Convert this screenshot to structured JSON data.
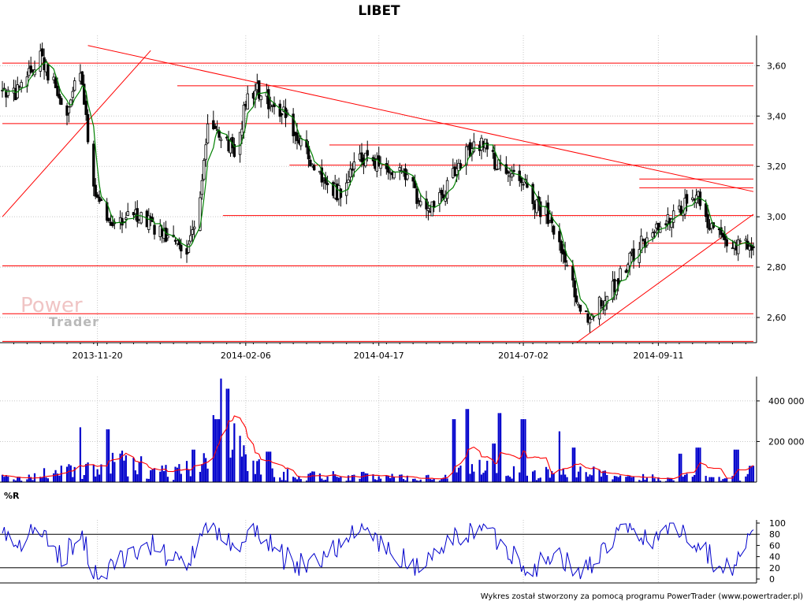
{
  "title": "LIBET",
  "watermark": {
    "line1": "Power",
    "line2": "Trader"
  },
  "footer": "Wykres został stworzony za pomocą programu PowerTrader (www.powertrader.pl)",
  "colors": {
    "candle": "#000000",
    "moving_average": "#008000",
    "support_resistance": "#ff0000",
    "volume_bars": "#0000cc",
    "volume_average": "#ff0000",
    "williams_r": "#0000cc"
  },
  "chart_data": [
    {
      "name": "price",
      "type": "candlestick",
      "title": "LIBET",
      "x_dates": {
        "start": "2013-10-01",
        "end": "2014-10-31"
      },
      "x_ticks": [
        "2013-11-20",
        "2014-02-06",
        "2014-04-17",
        "2014-07-02",
        "2014-09-11"
      ],
      "y_ticks": [
        "3,60",
        "3,40",
        "3,20",
        "3,00",
        "2,80",
        "2,60"
      ],
      "ylim": [
        2.5,
        3.72
      ],
      "grid": true,
      "keypoints": [
        [
          "2013-10-01",
          3.5
        ],
        [
          "2013-10-08",
          3.48
        ],
        [
          "2013-10-14",
          3.55
        ],
        [
          "2013-10-21",
          3.65
        ],
        [
          "2013-10-28",
          3.52
        ],
        [
          "2013-11-04",
          3.4
        ],
        [
          "2013-11-11",
          3.6
        ],
        [
          "2013-11-15",
          3.3
        ],
        [
          "2013-11-20",
          3.05
        ],
        [
          "2013-11-26",
          3.0
        ],
        [
          "2013-12-03",
          2.98
        ],
        [
          "2013-12-10",
          3.02
        ],
        [
          "2013-12-17",
          2.98
        ],
        [
          "2013-12-24",
          2.94
        ],
        [
          "2013-12-31",
          2.9
        ],
        [
          "2014-01-07",
          2.88
        ],
        [
          "2014-01-13",
          3.1
        ],
        [
          "2014-01-18",
          3.4
        ],
        [
          "2014-01-25",
          3.3
        ],
        [
          "2014-02-01",
          3.25
        ],
        [
          "2014-02-06",
          3.45
        ],
        [
          "2014-02-12",
          3.5
        ],
        [
          "2014-02-20",
          3.45
        ],
        [
          "2014-02-28",
          3.4
        ],
        [
          "2014-03-07",
          3.28
        ],
        [
          "2014-03-14",
          3.2
        ],
        [
          "2014-03-21",
          3.1
        ],
        [
          "2014-03-28",
          3.1
        ],
        [
          "2014-04-04",
          3.2
        ],
        [
          "2014-04-11",
          3.25
        ],
        [
          "2014-04-17",
          3.2
        ],
        [
          "2014-04-25",
          3.18
        ],
        [
          "2014-05-02",
          3.15
        ],
        [
          "2014-05-09",
          3.05
        ],
        [
          "2014-05-16",
          3.05
        ],
        [
          "2014-05-23",
          3.12
        ],
        [
          "2014-05-30",
          3.22
        ],
        [
          "2014-06-06",
          3.28
        ],
        [
          "2014-06-12",
          3.3
        ],
        [
          "2014-06-18",
          3.2
        ],
        [
          "2014-06-24",
          3.15
        ],
        [
          "2014-07-02",
          3.15
        ],
        [
          "2014-07-09",
          3.05
        ],
        [
          "2014-07-15",
          3.0
        ],
        [
          "2014-07-22",
          2.85
        ],
        [
          "2014-07-29",
          2.7
        ],
        [
          "2014-08-04",
          2.6
        ],
        [
          "2014-08-11",
          2.65
        ],
        [
          "2014-08-18",
          2.72
        ],
        [
          "2014-08-25",
          2.8
        ],
        [
          "2014-09-01",
          2.88
        ],
        [
          "2014-09-08",
          2.95
        ],
        [
          "2014-09-11",
          2.97
        ],
        [
          "2014-09-18",
          3.0
        ],
        [
          "2014-09-25",
          3.05
        ],
        [
          "2014-10-02",
          3.08
        ],
        [
          "2014-10-09",
          2.95
        ],
        [
          "2014-10-16",
          2.92
        ],
        [
          "2014-10-23",
          2.88
        ],
        [
          "2014-10-31",
          2.9
        ]
      ],
      "horizontal_levels": [
        {
          "y": 3.61,
          "from": "2013-10-01",
          "to": "2014-10-31"
        },
        {
          "y": 3.52,
          "from": "2014-01-01",
          "to": "2014-10-31"
        },
        {
          "y": 3.37,
          "from": "2013-10-01",
          "to": "2014-10-31"
        },
        {
          "y": 3.285,
          "from": "2014-03-22",
          "to": "2014-10-31"
        },
        {
          "y": 3.205,
          "from": "2014-03-01",
          "to": "2014-10-31"
        },
        {
          "y": 3.15,
          "from": "2014-09-01",
          "to": "2014-10-31"
        },
        {
          "y": 3.115,
          "from": "2014-09-01",
          "to": "2014-10-31"
        },
        {
          "y": 3.005,
          "from": "2014-01-25",
          "to": "2014-10-31"
        },
        {
          "y": 2.895,
          "from": "2014-09-01",
          "to": "2014-10-31"
        },
        {
          "y": 2.805,
          "from": "2013-10-01",
          "to": "2014-10-31"
        },
        {
          "y": 2.615,
          "from": "2013-10-01",
          "to": "2014-10-31"
        },
        {
          "y": 2.505,
          "from": "2013-10-01",
          "to": "2014-10-31"
        }
      ],
      "trendlines": [
        {
          "from": [
            "2013-10-01",
            3.0
          ],
          "to": [
            "2013-12-18",
            3.66
          ]
        },
        {
          "from": [
            "2013-11-15",
            3.68
          ],
          "to": [
            "2014-10-31",
            3.1
          ]
        },
        {
          "from": [
            "2014-07-30",
            2.5
          ],
          "to": [
            "2014-10-31",
            3.01
          ]
        }
      ]
    },
    {
      "name": "volume",
      "type": "bar",
      "y_ticks": [
        "400 000",
        "200 000"
      ],
      "ylim": [
        0,
        520000
      ],
      "keypoints": [
        [
          "2013-10-01",
          20000
        ],
        [
          "2013-11-15",
          60000
        ],
        [
          "2013-12-01",
          90000
        ],
        [
          "2014-01-01",
          50000
        ],
        [
          "2014-01-25",
          210000
        ],
        [
          "2014-02-06",
          120000
        ],
        [
          "2014-02-20",
          40000
        ],
        [
          "2014-04-01",
          30000
        ],
        [
          "2014-05-20",
          20000
        ],
        [
          "2014-06-01",
          70000
        ],
        [
          "2014-06-20",
          90000
        ],
        [
          "2014-07-01",
          30000
        ],
        [
          "2014-08-01",
          60000
        ],
        [
          "2014-08-20",
          20000
        ],
        [
          "2014-09-20",
          25000
        ],
        [
          "2014-10-31",
          25000
        ]
      ],
      "spikes": [
        [
          "2013-11-10",
          270000
        ],
        [
          "2013-11-25",
          260000
        ],
        [
          "2014-01-10",
          160000
        ],
        [
          "2014-01-19",
          330000
        ],
        [
          "2014-01-22",
          310000
        ],
        [
          "2014-01-25",
          510000
        ],
        [
          "2014-01-27",
          460000
        ],
        [
          "2014-02-18",
          150000
        ],
        [
          "2014-05-26",
          310000
        ],
        [
          "2014-06-02",
          360000
        ],
        [
          "2014-06-16",
          190000
        ],
        [
          "2014-06-20",
          340000
        ],
        [
          "2014-07-02",
          310000
        ],
        [
          "2014-07-20",
          250000
        ],
        [
          "2014-07-28",
          170000
        ],
        [
          "2014-09-22",
          140000
        ],
        [
          "2014-10-02",
          170000
        ],
        [
          "2014-10-22",
          160000
        ],
        [
          "2014-10-30",
          80000
        ]
      ]
    },
    {
      "name": "williams_r",
      "type": "line",
      "title": "%R",
      "y_ticks": [
        "100",
        "80",
        "60",
        "40",
        "20",
        "0"
      ],
      "ylim": [
        0,
        100
      ],
      "reference_lines": [
        80,
        20
      ],
      "keypoints": [
        [
          "2013-10-01",
          80
        ],
        [
          "2013-10-10",
          60
        ],
        [
          "2013-10-20",
          90
        ],
        [
          "2013-11-01",
          40
        ],
        [
          "2013-11-12",
          70
        ],
        [
          "2013-11-20",
          5
        ],
        [
          "2013-12-05",
          40
        ],
        [
          "2013-12-20",
          60
        ],
        [
          "2014-01-05",
          20
        ],
        [
          "2014-01-18",
          95
        ],
        [
          "2014-02-01",
          60
        ],
        [
          "2014-02-10",
          90
        ],
        [
          "2014-02-25",
          40
        ],
        [
          "2014-03-10",
          20
        ],
        [
          "2014-03-25",
          60
        ],
        [
          "2014-04-10",
          90
        ],
        [
          "2014-04-25",
          40
        ],
        [
          "2014-05-10",
          20
        ],
        [
          "2014-05-25",
          70
        ],
        [
          "2014-06-10",
          95
        ],
        [
          "2014-06-25",
          50
        ],
        [
          "2014-07-05",
          20
        ],
        [
          "2014-07-20",
          40
        ],
        [
          "2014-08-01",
          10
        ],
        [
          "2014-08-10",
          40
        ],
        [
          "2014-08-25",
          90
        ],
        [
          "2014-09-05",
          70
        ],
        [
          "2014-09-20",
          95
        ],
        [
          "2014-10-05",
          60
        ],
        [
          "2014-10-15",
          10
        ],
        [
          "2014-10-25",
          40
        ],
        [
          "2014-10-31",
          100
        ]
      ]
    }
  ]
}
